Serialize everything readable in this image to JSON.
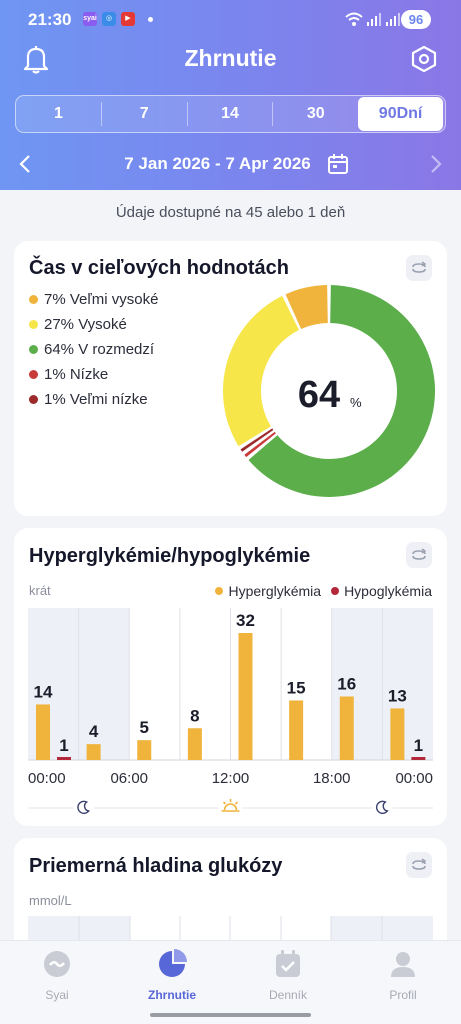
{
  "status_bar": {
    "time": "21:30",
    "app_icons": [
      "syai-icon",
      "target-icon",
      "youtube-icon"
    ],
    "battery": "96"
  },
  "header": {
    "title": "Zhrnutie"
  },
  "period_tabs": [
    "1",
    "7",
    "14",
    "30",
    "90Dní"
  ],
  "period_selected": "90Dní",
  "date_range": "7 Jan 2026 - 7 Apr 2026",
  "availability": "Údaje dostupné na 45 alebo 1 deň",
  "tir_card": {
    "title": "Čas v cieľových hodnotách",
    "legend": [
      {
        "label": "7% Veľmi vysoké",
        "color": "#f0b43c",
        "value": 7
      },
      {
        "label": "27% Vysoké",
        "color": "#f7e64a",
        "value": 27
      },
      {
        "label": "64% V rozmedzí",
        "color": "#5bae4a",
        "value": 64
      },
      {
        "label": "1% Nízke",
        "color": "#c93a3a",
        "value": 1
      },
      {
        "label": "1% Veľmi nízke",
        "color": "#9c2a2a",
        "value": 1
      }
    ],
    "center_value": "64",
    "center_unit": "%"
  },
  "hyper_card": {
    "title": "Hyperglykémie/hypoglykémie",
    "unit": "krát",
    "legend": [
      {
        "label": "Hyperglykémia",
        "color": "#f0b43c"
      },
      {
        "label": "Hypoglykémia",
        "color": "#b2283a"
      }
    ]
  },
  "chart_data": {
    "type": "bar",
    "categories": [
      "00:00-03:00",
      "03:00-06:00",
      "06:00-09:00",
      "09:00-12:00",
      "12:00-15:00",
      "15:00-18:00",
      "18:00-21:00",
      "21:00-24:00"
    ],
    "series": [
      {
        "name": "Hyperglykémia",
        "values": [
          14,
          4,
          5,
          8,
          32,
          15,
          16,
          13
        ]
      },
      {
        "name": "Hypoglykémia",
        "values": [
          1,
          0,
          0,
          0,
          0,
          0,
          0,
          1
        ]
      }
    ],
    "x_tick_labels": [
      "00:00",
      "06:00",
      "12:00",
      "18:00",
      "00:00"
    ],
    "ylabel": "krát",
    "legend_position": "top-right",
    "ylim": [
      0,
      32
    ]
  },
  "glucose_card": {
    "title": "Priemerná hladina glukózy",
    "unit": "mmol/L"
  },
  "tabbar": [
    {
      "label": "Syai",
      "icon": "syai-logo-icon"
    },
    {
      "label": "Zhrnutie",
      "icon": "pie-chart-icon"
    },
    {
      "label": "Denník",
      "icon": "calendar-check-icon"
    },
    {
      "label": "Profil",
      "icon": "profile-icon"
    }
  ],
  "colors": {
    "accent": "#6f78e3",
    "hyper": "#f0b43c",
    "hypo": "#b2283a",
    "in_range": "#5bae4a"
  }
}
